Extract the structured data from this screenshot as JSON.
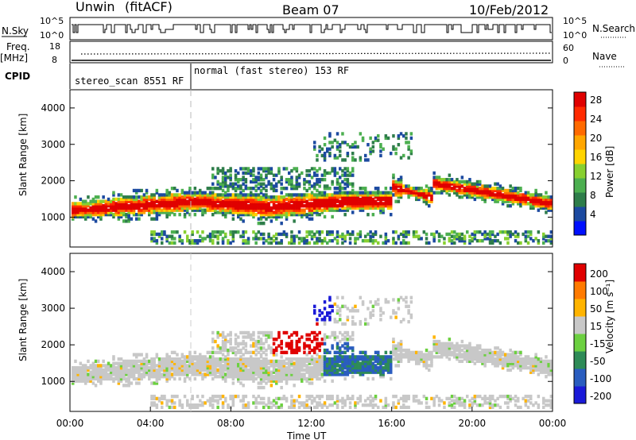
{
  "header": {
    "station": "Unwin",
    "mode": "(fitACF)",
    "beam": "Beam 07",
    "date": "10/Feb/2012"
  },
  "top_panel": {
    "left_label_1": "N.Sky",
    "left_ticks_1": [
      "10^5",
      "10^0"
    ],
    "right_label_1": "N.Search",
    "right_ticks_1": [
      "10^5",
      "10^0"
    ],
    "left_label_2a": "Freq.",
    "left_label_2b": "[MHz]",
    "left_ticks_2": [
      "18",
      "8"
    ],
    "right_label_2": "Nave",
    "right_ticks_2": [
      "60",
      "0"
    ],
    "cpid_label": "CPID",
    "cpid_1": "stereo_scan 8551 RF",
    "cpid_2": "normal (fast stereo) 153 RF"
  },
  "chart_data": [
    {
      "type": "heatmap",
      "title": "",
      "ylabel": "Slant Range [km]",
      "xlabel": "",
      "ylim": [
        180,
        4500
      ],
      "xlim": [
        0,
        24
      ],
      "y_ticks": [
        "1000",
        "2000",
        "3000",
        "4000"
      ],
      "colorbar": {
        "label": "Power [dB]",
        "ticks": [
          "4",
          "8",
          "12",
          "16",
          "20",
          "24",
          "28"
        ],
        "colors": [
          "#0010ff",
          "#1c4aa0",
          "#2e7d4a",
          "#4caf50",
          "#88d030",
          "#ffd400",
          "#ffa600",
          "#ff6a00",
          "#ff2a00",
          "#e00000"
        ]
      }
    },
    {
      "type": "heatmap",
      "title": "",
      "ylabel": "Slant Range [km]",
      "xlabel": "",
      "ylim": [
        180,
        4500
      ],
      "xlim": [
        0,
        24
      ],
      "y_ticks": [
        "1000",
        "2000",
        "3000",
        "4000"
      ],
      "colorbar": {
        "label": "Velocity [m s⁻¹]",
        "ticks": [
          "200",
          "100",
          "50",
          "15",
          "-15",
          "-50",
          "-100",
          "-200"
        ],
        "colors": [
          "#1a1ad8",
          "#2a5dbf",
          "#2e8b57",
          "#6cd040",
          "#c8c8c8",
          "#ffb400",
          "#ff7a00",
          "#e00000"
        ]
      }
    }
  ],
  "xaxis": {
    "ticks": [
      "00:00",
      "04:00",
      "08:00",
      "12:00",
      "16:00",
      "20:00",
      "00:00"
    ],
    "label": "Time UT"
  }
}
